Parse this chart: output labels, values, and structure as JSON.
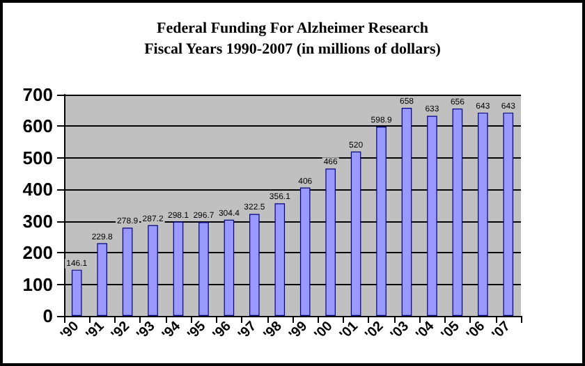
{
  "chart_data": {
    "type": "bar",
    "title": "Federal Funding For Alzheimer Research\nFiscal Years 1990-2007 (in millions of dollars)",
    "categories": [
      "'90",
      "'91",
      "'92",
      "'93",
      "'94",
      "'95",
      "'96",
      "'97",
      "'98",
      "'99",
      "'00",
      "'01",
      "'02",
      "'03",
      "'04",
      "'05",
      "'06",
      "'07"
    ],
    "values": [
      146.1,
      229.8,
      278.9,
      287.2,
      298.1,
      296.7,
      304.4,
      322.5,
      356.1,
      406,
      466,
      520,
      598.9,
      658,
      633,
      656,
      643,
      643
    ],
    "color": "#9999ff",
    "ylim": [
      0,
      700
    ],
    "yticks": [
      0,
      100,
      200,
      300,
      400,
      500,
      600,
      700
    ],
    "grid": "y",
    "data_labels": true
  }
}
